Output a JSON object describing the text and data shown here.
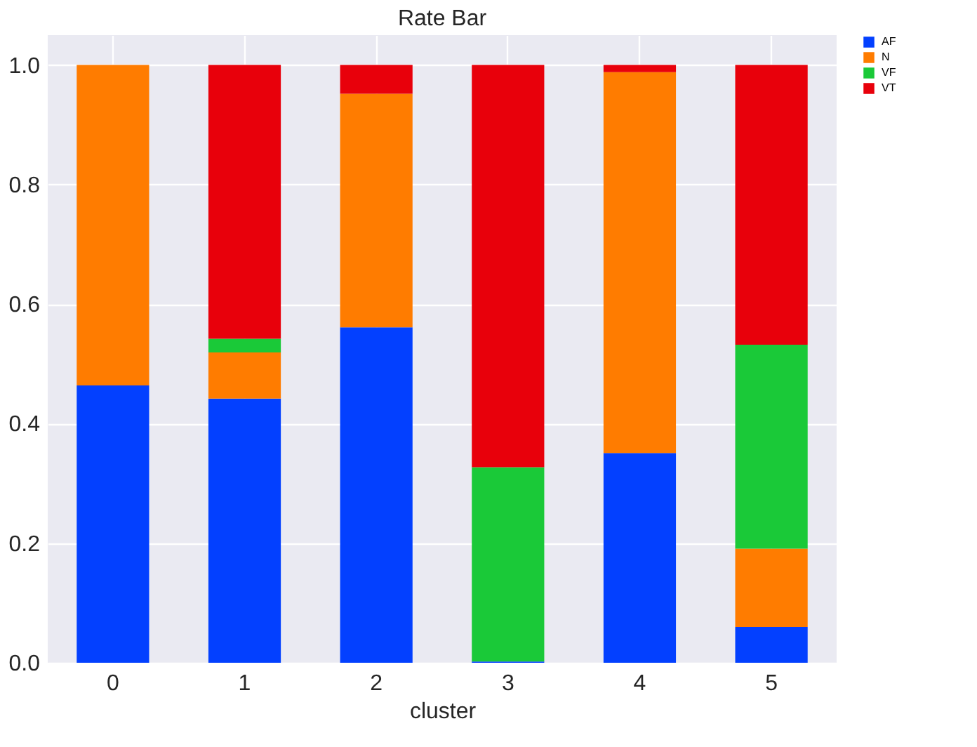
{
  "chart_data": {
    "type": "bar",
    "title": "Rate Bar",
    "xlabel": "cluster",
    "categories": [
      "0",
      "1",
      "2",
      "3",
      "4",
      "5"
    ],
    "series": [
      {
        "name": "AF",
        "color": "#0340ff",
        "values": [
          0.464,
          0.442,
          0.561,
          0.002,
          0.351,
          0.06
        ]
      },
      {
        "name": "N",
        "color": "#ff7c00",
        "values": [
          0.536,
          0.077,
          0.391,
          0,
          0.637,
          0.131
        ]
      },
      {
        "name": "VF",
        "color": "#1ac938",
        "values": [
          0,
          0.023,
          0,
          0.325,
          0,
          0.341
        ]
      },
      {
        "name": "VT",
        "color": "#e8000b",
        "values": [
          0,
          0.458,
          0.048,
          0.673,
          0.012,
          0.468
        ]
      }
    ],
    "stacked": true,
    "ylim": [
      0,
      1.05
    ],
    "yticks": [
      {
        "value": 0,
        "label": "0.0"
      },
      {
        "value": 0.2,
        "label": "0.2"
      },
      {
        "value": 0.4,
        "label": "0.4"
      },
      {
        "value": 0.6,
        "label": "0.6"
      },
      {
        "value": 0.8,
        "label": "0.8"
      },
      {
        "value": 1,
        "label": "1.0"
      }
    ],
    "grid": true,
    "legend": "top right"
  }
}
